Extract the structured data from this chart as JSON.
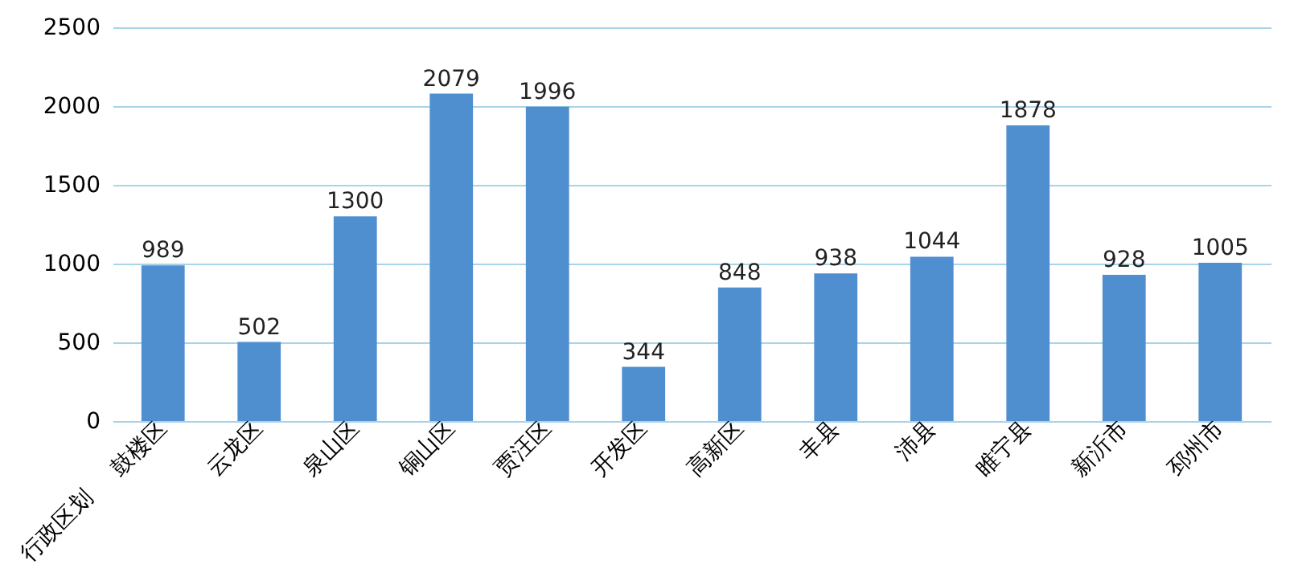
{
  "chart_data": {
    "type": "bar",
    "xlabel": "行政区划",
    "categories": [
      "鼓楼区",
      "云龙区",
      "泉山区",
      "铜山区",
      "贾汪区",
      "开发区",
      "高新区",
      "丰县",
      "沛县",
      "睢宁县",
      "新沂市",
      "邳州市"
    ],
    "values": [
      989,
      502,
      1300,
      2079,
      1996,
      344,
      848,
      938,
      1044,
      1878,
      928,
      1005
    ],
    "color": "#4f8fd0",
    "ylim": [
      0,
      2500
    ],
    "yticks": [
      0,
      500,
      1000,
      1500,
      2000,
      2500
    ],
    "grid": "y",
    "data_labels": true
  }
}
